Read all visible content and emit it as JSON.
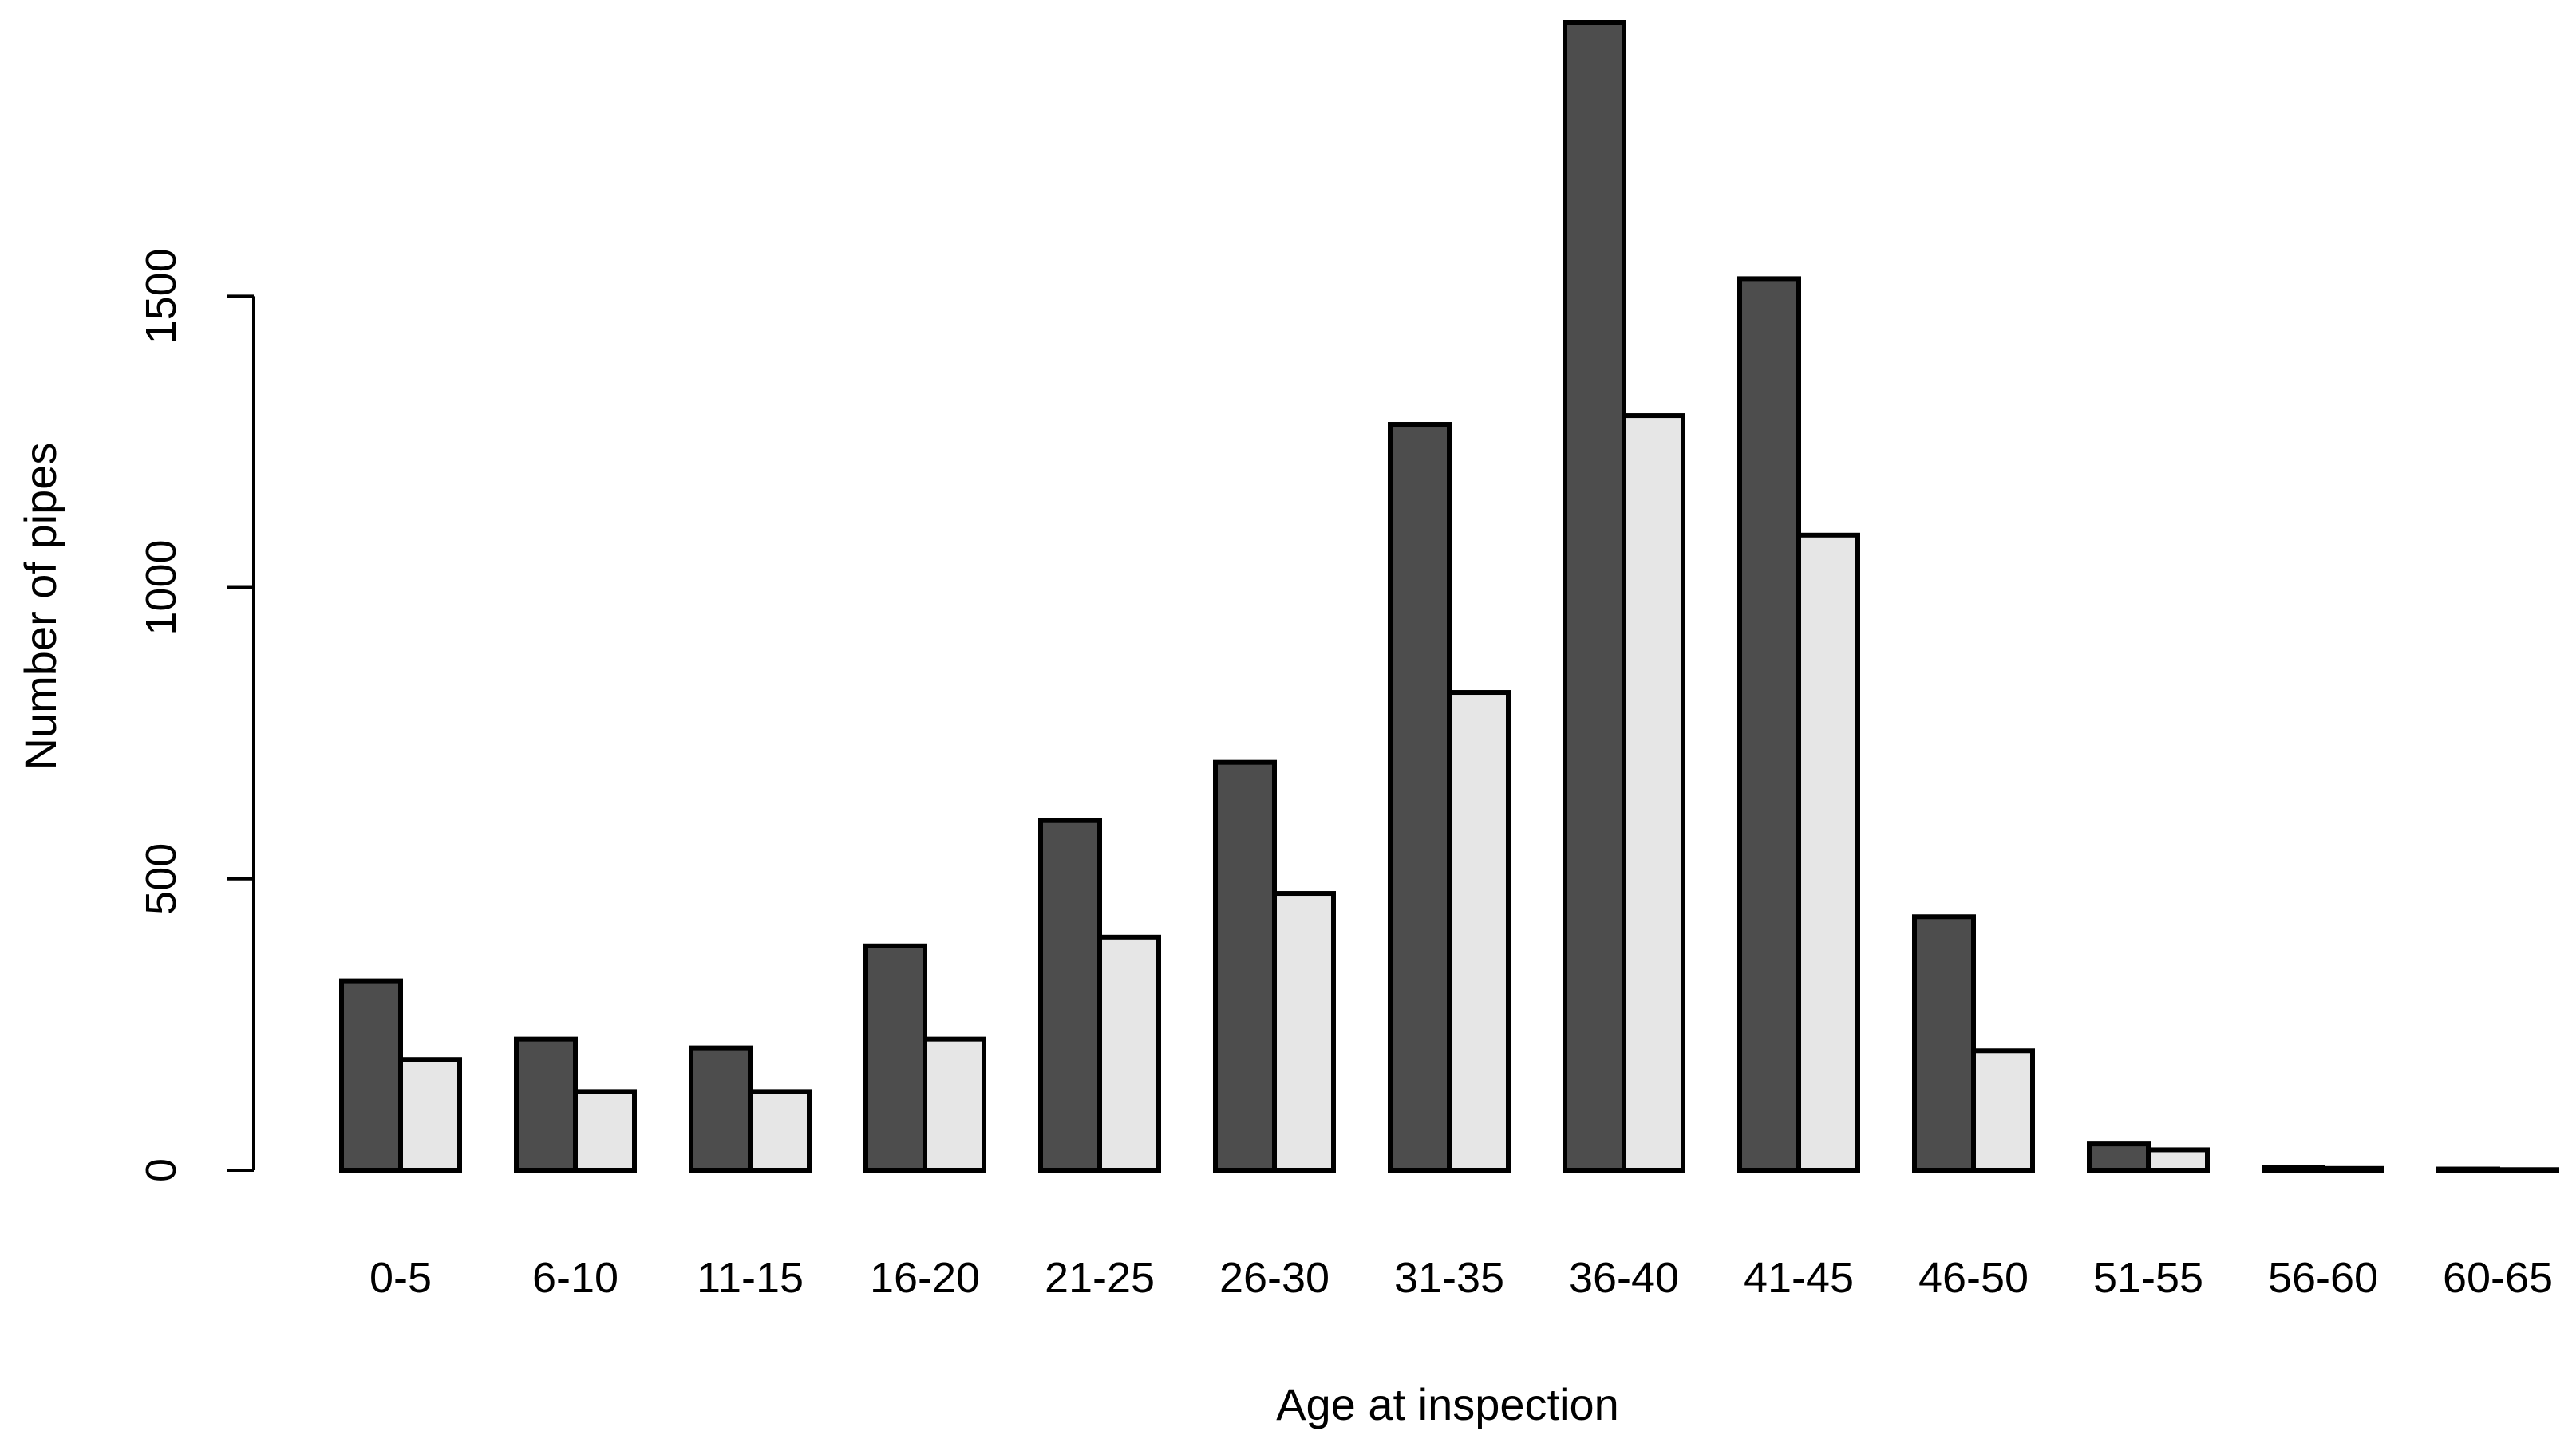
{
  "chart_data": {
    "type": "bar",
    "xlabel": "Age at inspection",
    "ylabel": "Number of pipes",
    "categories": [
      "0-5",
      "6-10",
      "11-15",
      "16-20",
      "21-25",
      "26-30",
      "31-35",
      "36-40",
      "41-45",
      "46-50",
      "51-55",
      "56-60",
      "60-65"
    ],
    "series": [
      {
        "values": [
          325,
          225,
          210,
          385,
          600,
          700,
          1280,
          1970,
          1530,
          435,
          45,
          5,
          2
        ],
        "color": "#4d4d4d"
      },
      {
        "values": [
          190,
          135,
          135,
          225,
          400,
          475,
          820,
          1295,
          1090,
          205,
          35,
          3,
          1
        ],
        "color": "#e6e6e6"
      }
    ],
    "ylim": [
      0,
      1970
    ],
    "yticks": [
      0,
      500,
      1000,
      1500
    ],
    "ytick_labels": [
      "0",
      "500",
      "1000",
      "1500"
    ],
    "grid": false,
    "legend": "none"
  }
}
